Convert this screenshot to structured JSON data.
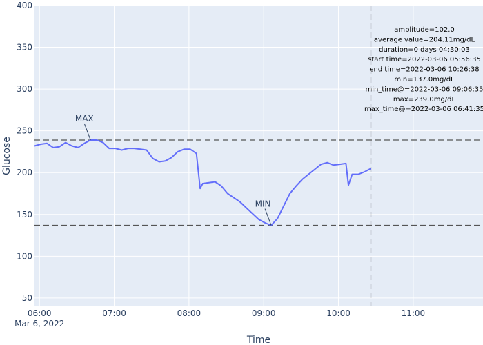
{
  "chart_data": {
    "type": "line",
    "xlabel": "Time",
    "ylabel": "Glucose",
    "ylim": [
      40,
      400
    ],
    "yticks": [
      50,
      100,
      150,
      200,
      250,
      300,
      350,
      400
    ],
    "xlim": [
      "2022-03-06 05:56",
      "2022-03-06 11:56"
    ],
    "xticks": [
      {
        "t": "2022-03-06 06:00",
        "label": "06:00",
        "sublabel": "Mar 6, 2022"
      },
      {
        "t": "2022-03-06 07:00",
        "label": "07:00",
        "sublabel": ""
      },
      {
        "t": "2022-03-06 08:00",
        "label": "08:00",
        "sublabel": ""
      },
      {
        "t": "2022-03-06 09:00",
        "label": "09:00",
        "sublabel": ""
      },
      {
        "t": "2022-03-06 10:00",
        "label": "10:00",
        "sublabel": ""
      },
      {
        "t": "2022-03-06 11:00",
        "label": "11:00",
        "sublabel": ""
      }
    ],
    "grid": true,
    "line_color": "#636efa",
    "series": [
      {
        "x": [
          "2022-03-06 05:56",
          "2022-03-06 06:01",
          "2022-03-06 06:06",
          "2022-03-06 06:11",
          "2022-03-06 06:16",
          "2022-03-06 06:21",
          "2022-03-06 06:26",
          "2022-03-06 06:31",
          "2022-03-06 06:36",
          "2022-03-06 06:41",
          "2022-03-06 06:46",
          "2022-03-06 06:51",
          "2022-03-06 06:56",
          "2022-03-06 07:01",
          "2022-03-06 07:06",
          "2022-03-06 07:11",
          "2022-03-06 07:16",
          "2022-03-06 07:21",
          "2022-03-06 07:26",
          "2022-03-06 07:31",
          "2022-03-06 07:36",
          "2022-03-06 07:41",
          "2022-03-06 07:46",
          "2022-03-06 07:51",
          "2022-03-06 07:56",
          "2022-03-06 08:01",
          "2022-03-06 08:06",
          "2022-03-06 08:09",
          "2022-03-06 08:11",
          "2022-03-06 08:16",
          "2022-03-06 08:21",
          "2022-03-06 08:26",
          "2022-03-06 08:31",
          "2022-03-06 08:36",
          "2022-03-06 08:41",
          "2022-03-06 08:46",
          "2022-03-06 08:51",
          "2022-03-06 08:56",
          "2022-03-06 09:01",
          "2022-03-06 09:06",
          "2022-03-06 09:11",
          "2022-03-06 09:16",
          "2022-03-06 09:21",
          "2022-03-06 09:26",
          "2022-03-06 09:31",
          "2022-03-06 09:36",
          "2022-03-06 09:41",
          "2022-03-06 09:46",
          "2022-03-06 09:51",
          "2022-03-06 09:56",
          "2022-03-06 10:01",
          "2022-03-06 10:06",
          "2022-03-06 10:08",
          "2022-03-06 10:11",
          "2022-03-06 10:16",
          "2022-03-06 10:21",
          "2022-03-06 10:26"
        ],
        "y": [
          232,
          234,
          235,
          230,
          231,
          236,
          232,
          230,
          235,
          239,
          239,
          236,
          229,
          229,
          227,
          229,
          229,
          228,
          227,
          217,
          213,
          214,
          218,
          225,
          228,
          228,
          223,
          181,
          187,
          188,
          189,
          184,
          175,
          170,
          165,
          158,
          151,
          144,
          140,
          137,
          145,
          160,
          175,
          184,
          192,
          198,
          204,
          210,
          212,
          209,
          210,
          211,
          185,
          198,
          198,
          201,
          205
        ]
      }
    ],
    "max_line": {
      "y": 239,
      "label": "MAX",
      "t": "2022-03-06 06:41"
    },
    "min_line": {
      "y": 137,
      "label": "MIN",
      "t": "2022-03-06 09:06"
    },
    "end_line": {
      "t": "2022-03-06 10:26"
    },
    "annotation": [
      "amplitude=102.0",
      "average value=204.11mg/dL",
      "duration=0 days 04:30:03",
      "start time=2022-03-06 05:56:35",
      "end time=2022-03-06 10:26:38",
      "min=137.0mg/dL",
      "min_time@=2022-03-06 09:06:35",
      "max=239.0mg/dL",
      "max_time@=2022-03-06 06:41:35"
    ]
  }
}
